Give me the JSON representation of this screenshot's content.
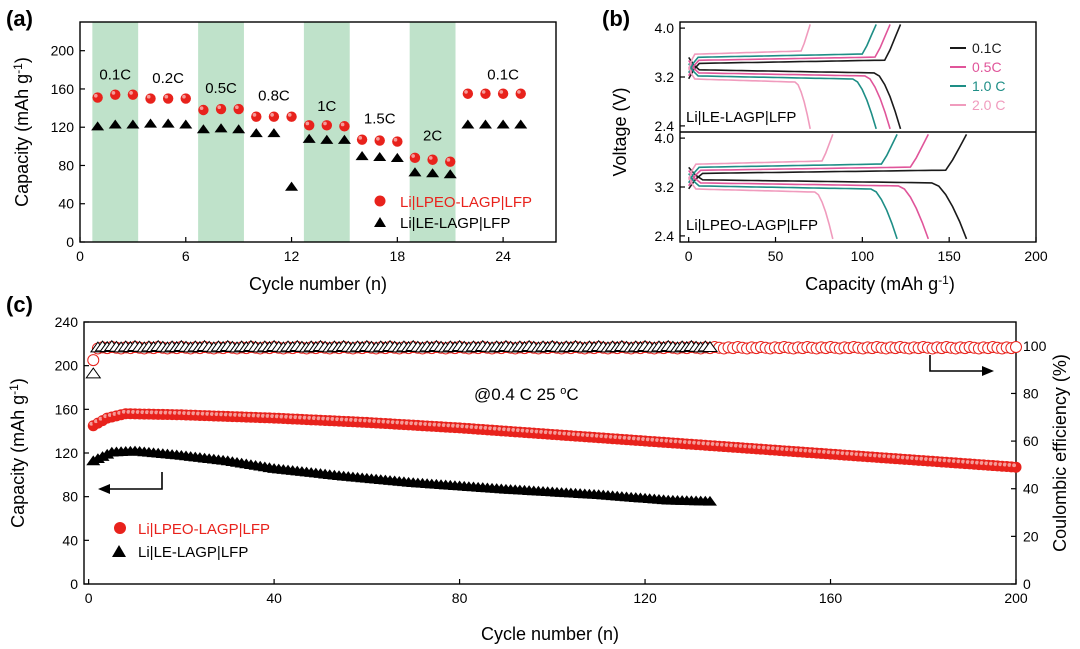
{
  "chart_data": [
    {
      "panel": "a",
      "type": "scatter",
      "panel_label": "a",
      "xlabel": "Cycle number (n)",
      "ylabel": "Capacity (mAh g",
      "ylabel_sup": "-1",
      "ylabel_close": ")",
      "xlim": [
        0,
        27
      ],
      "ylim": [
        0,
        230
      ],
      "xticks": [
        0,
        6,
        12,
        18,
        24
      ],
      "yticks": [
        0,
        40,
        80,
        120,
        160,
        200
      ],
      "shaded_bands": [
        [
          0.7,
          3.3
        ],
        [
          6.7,
          9.3
        ],
        [
          12.7,
          15.3
        ],
        [
          18.7,
          21.3
        ]
      ],
      "rate_labels": [
        {
          "text": "0.1C",
          "x": 2,
          "y": 170
        },
        {
          "text": "0.2C",
          "x": 5,
          "y": 166
        },
        {
          "text": "0.5C",
          "x": 8,
          "y": 156
        },
        {
          "text": "0.8C",
          "x": 11,
          "y": 148
        },
        {
          "text": "1C",
          "x": 14,
          "y": 137
        },
        {
          "text": "1.5C",
          "x": 17,
          "y": 124
        },
        {
          "text": "2C",
          "x": 20,
          "y": 106
        },
        {
          "text": "0.1C",
          "x": 24,
          "y": 170
        }
      ],
      "series": [
        {
          "name": "Li|LPEO-LAGP|LFP",
          "color": "#e8221c",
          "marker": "circle",
          "x": [
            1,
            2,
            3,
            4,
            5,
            6,
            7,
            8,
            9,
            10,
            11,
            12,
            13,
            14,
            15,
            16,
            17,
            18,
            19,
            20,
            21,
            22,
            23,
            24,
            25
          ],
          "y": [
            151,
            154,
            154,
            150,
            150,
            150,
            138,
            139,
            139,
            131,
            131,
            131,
            122,
            122,
            121,
            107,
            106,
            105,
            88,
            86,
            84,
            155,
            155,
            155,
            155
          ]
        },
        {
          "name": "Li|LE-LAGP|LFP",
          "color": "#000000",
          "marker": "triangle",
          "x": [
            1,
            2,
            3,
            4,
            5,
            6,
            7,
            8,
            9,
            10,
            11,
            12,
            13,
            14,
            15,
            16,
            17,
            18,
            19,
            20,
            21,
            22,
            23,
            24,
            25
          ],
          "y": [
            120,
            122,
            122,
            123,
            123,
            122,
            117,
            118,
            117,
            113,
            113,
            57,
            107,
            106,
            106,
            89,
            88,
            87,
            72,
            71,
            70,
            122,
            122,
            122,
            122
          ]
        }
      ]
    },
    {
      "panel": "b",
      "type": "line",
      "panel_label": "b",
      "xlabel": "Capacity (mAh g",
      "xlabel_sup": "-1",
      "xlabel_close": ")",
      "ylabel": "Voltage (V)",
      "xlim": [
        -5,
        200
      ],
      "xticks": [
        0,
        50,
        100,
        150,
        200
      ],
      "subplots": [
        {
          "label": "Li|LE-LAGP|LFP",
          "ylim": [
            2.3,
            4.1
          ],
          "yticks": [
            2.4,
            3.2,
            4.0
          ],
          "yticklabels": [
            "2.4",
            "3.2",
            "4.0"
          ],
          "rates": [
            {
              "name": "0.1C",
              "color": "#1a1a1a",
              "cap": 122
            },
            {
              "name": "0.5C",
              "color": "#e0559a",
              "cap": 116
            },
            {
              "name": "1.0 C",
              "color": "#1e8e86",
              "cap": 108
            },
            {
              "name": "2.0 C",
              "color": "#f09bbd",
              "cap": 70
            }
          ]
        },
        {
          "label": "Li|LPEO-LAGP|LFP",
          "ylim": [
            2.3,
            4.1
          ],
          "yticks": [
            2.4,
            3.2,
            4.0
          ],
          "yticklabels": [
            "2.4",
            "3.2",
            "4.0"
          ],
          "rates": [
            {
              "name": "0.1C",
              "color": "#1a1a1a",
              "cap": 160
            },
            {
              "name": "0.5C",
              "color": "#e0559a",
              "cap": 138
            },
            {
              "name": "1.0 C",
              "color": "#1e8e86",
              "cap": 120
            },
            {
              "name": "2.0 C",
              "color": "#f09bbd",
              "cap": 83
            }
          ]
        }
      ]
    },
    {
      "panel": "c",
      "type": "scatter",
      "panel_label": "c",
      "xlabel": "Cycle number (n)",
      "ylabel": "Capacity (mAh g",
      "ylabel_sup": "-1",
      "ylabel_close": ")",
      "y2label": "Coulombic efficiency (%)",
      "xlim": [
        -1,
        200
      ],
      "ylim": [
        0,
        240
      ],
      "y2lim": [
        0,
        110
      ],
      "xticks": [
        0,
        40,
        80,
        120,
        160,
        200
      ],
      "yticks": [
        0,
        40,
        80,
        120,
        160,
        200,
        240
      ],
      "y2ticks": [
        0,
        20,
        40,
        60,
        80,
        100
      ],
      "annotation": "@0.4 C  25 ",
      "annotation_sup": "o",
      "annotation_tail": "C",
      "series": [
        {
          "name": "Li|LPEO-LAGP|LFP",
          "color": "#e8221c",
          "marker": "circle",
          "axis": "capacity",
          "x_end": 200,
          "curve": [
            [
              1,
              145
            ],
            [
              4,
              152
            ],
            [
              8,
              156
            ],
            [
              20,
              155
            ],
            [
              40,
              152
            ],
            [
              60,
              148
            ],
            [
              80,
              143
            ],
            [
              100,
              137
            ],
            [
              120,
              131
            ],
            [
              140,
              125
            ],
            [
              160,
              119
            ],
            [
              180,
              113
            ],
            [
              200,
              107
            ]
          ]
        },
        {
          "name": "Li|LE-LAGP|LFP",
          "color": "#000000",
          "marker": "triangle",
          "axis": "capacity",
          "x_end": 134,
          "curve": [
            [
              1,
              112
            ],
            [
              5,
              120
            ],
            [
              10,
              121
            ],
            [
              20,
              117
            ],
            [
              30,
              112
            ],
            [
              40,
              105
            ],
            [
              55,
              98
            ],
            [
              70,
              92
            ],
            [
              90,
              86
            ],
            [
              110,
              81
            ],
            [
              125,
              76
            ],
            [
              134,
              75
            ]
          ]
        },
        {
          "name": "CE Li|LPEO-LAGP|LFP",
          "color": "#e8221c",
          "marker": "open-circle",
          "axis": "ce",
          "x_end": 200,
          "first": 94,
          "value": 99.5
        },
        {
          "name": "CE Li|LE-LAGP|LFP",
          "color": "#000000",
          "marker": "open-triangle",
          "axis": "ce",
          "x_end": 134,
          "first": 88,
          "value": 99.5
        }
      ]
    }
  ]
}
